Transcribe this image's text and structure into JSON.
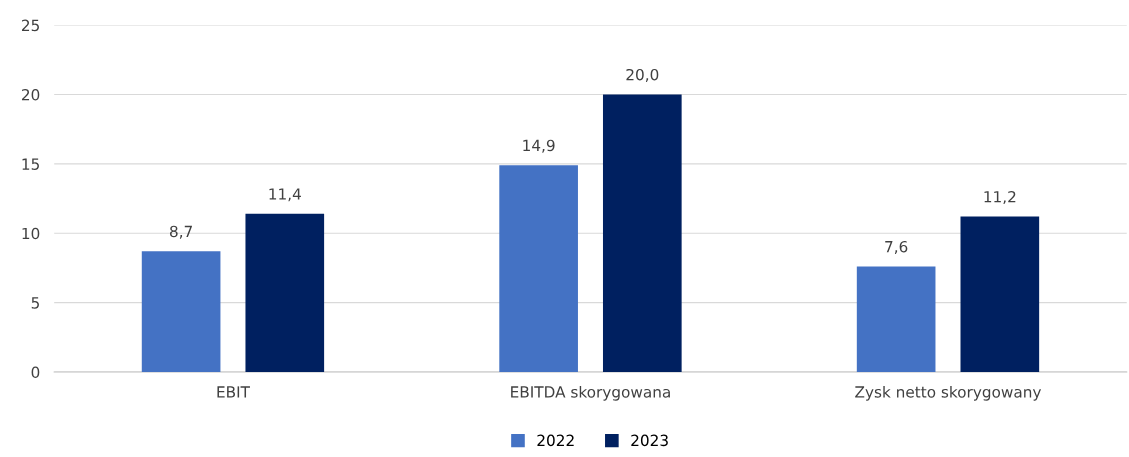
{
  "chart_data": {
    "type": "bar",
    "categories": [
      "EBIT",
      "EBITDA skorygowana",
      "Zysk netto skorygowany"
    ],
    "series": [
      {
        "name": "2022",
        "color": "#4472c4",
        "values": [
          8.7,
          14.9,
          7.6
        ],
        "value_labels": [
          "8,7",
          "14,9",
          "7,6"
        ]
      },
      {
        "name": "2023",
        "color": "#002060",
        "values": [
          11.4,
          20.0,
          11.2
        ],
        "value_labels": [
          "11,4",
          "20,0",
          "11,2"
        ]
      }
    ],
    "ylim": [
      0,
      25
    ],
    "yticks": [
      0,
      5,
      10,
      15,
      20,
      25
    ],
    "grid": "y",
    "legend": "bottom"
  }
}
